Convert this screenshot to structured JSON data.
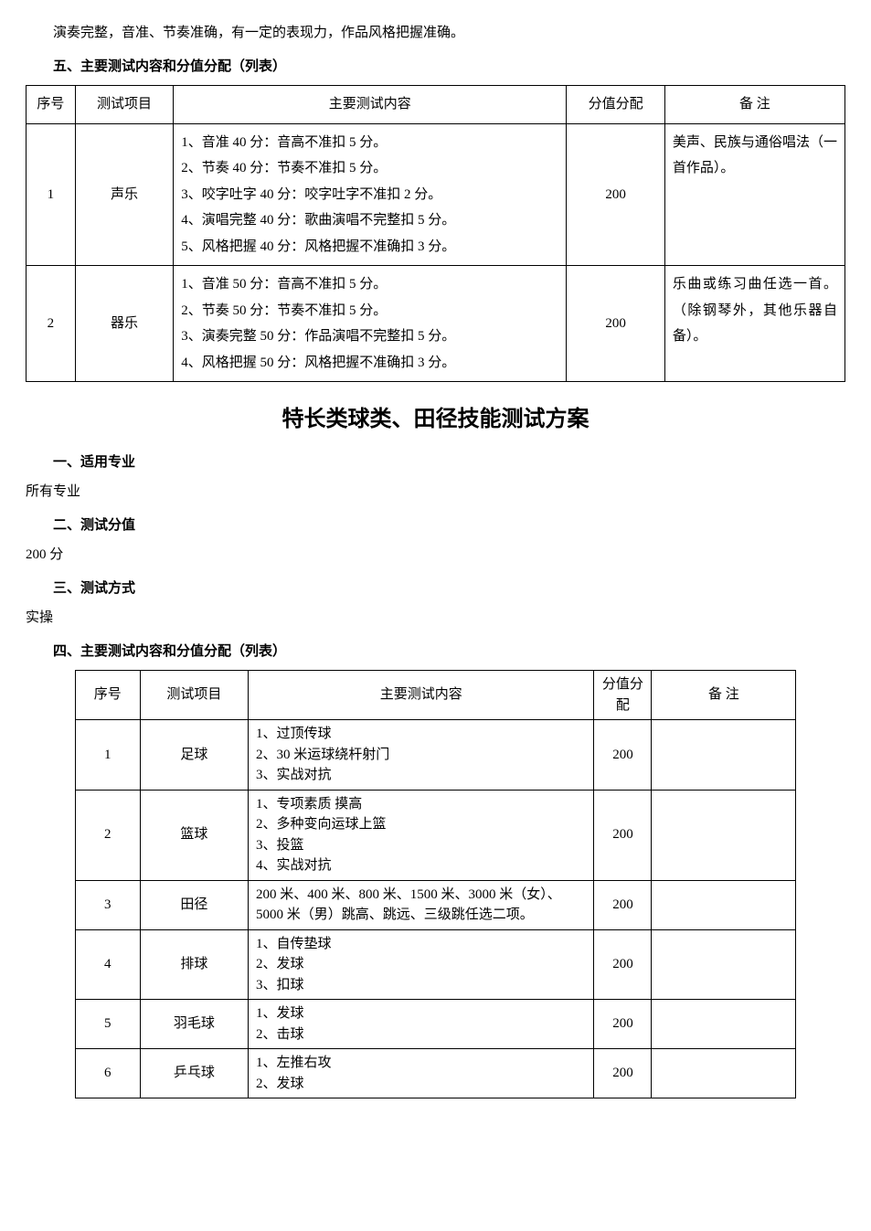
{
  "intro_line": "演奏完整，音准、节奏准确，有一定的表现力，作品风格把握准确。",
  "section5_heading": "五、主要测试内容和分值分配（列表）",
  "table1": {
    "headers": {
      "seq": "序号",
      "item": "测试项目",
      "content": "主要测试内容",
      "score": "分值分配",
      "note": "备  注"
    },
    "rows": [
      {
        "seq": "1",
        "item": "声乐",
        "content_lines": [
          "1、音准 40 分：音高不准扣 5 分。",
          "2、节奏 40 分：节奏不准扣 5 分。",
          "3、咬字吐字 40 分：咬字吐字不准扣 2 分。",
          "4、演唱完整 40 分：歌曲演唱不完整扣 5 分。",
          "5、风格把握 40 分：风格把握不准确扣 3 分。"
        ],
        "score": "200",
        "note": "美声、民族与通俗唱法（一首作品）。"
      },
      {
        "seq": "2",
        "item": "器乐",
        "content_lines": [
          "1、音准 50 分：音高不准扣 5 分。",
          "2、节奏 50 分：节奏不准扣 5 分。",
          "3、演奏完整 50 分：作品演唱不完整扣 5 分。",
          "4、风格把握 50 分：风格把握不准确扣 3 分。"
        ],
        "score": "200",
        "note": "乐曲或练习曲任选一首。（除钢琴外，其他乐器自备）。"
      }
    ]
  },
  "doc2_title": "特长类球类、田径技能测试方案",
  "sec1_heading": "一、适用专业",
  "sec1_text": "所有专业",
  "sec2_heading": "二、测试分值",
  "sec2_text": "200 分",
  "sec3_heading": "三、测试方式",
  "sec3_text": "实操",
  "sec4_heading": "四、主要测试内容和分值分配（列表）",
  "table2": {
    "headers": {
      "seq": "序号",
      "item": "测试项目",
      "content": "主要测试内容",
      "score": "分值分配",
      "note": "备  注"
    },
    "rows": [
      {
        "seq": "1",
        "item": "足球",
        "content_lines": [
          "1、过顶传球",
          "2、30 米运球绕杆射门",
          "3、实战对抗"
        ],
        "score": "200",
        "note": ""
      },
      {
        "seq": "2",
        "item": "篮球",
        "content_lines": [
          "1、专项素质 摸高",
          "2、多种变向运球上篮",
          "3、投篮",
          "4、实战对抗"
        ],
        "score": "200",
        "note": ""
      },
      {
        "seq": "3",
        "item": "田径",
        "content_lines": [
          "200 米、400 米、800 米、1500 米、3000 米（女）、5000 米（男）跳高、跳远、三级跳任选二项。"
        ],
        "score": "200",
        "note": ""
      },
      {
        "seq": "4",
        "item": "排球",
        "content_lines": [
          "1、自传垫球",
          "2、发球",
          "3、扣球"
        ],
        "score": "200",
        "note": ""
      },
      {
        "seq": "5",
        "item": "羽毛球",
        "content_lines": [
          "1、发球",
          "2、击球"
        ],
        "score": "200",
        "note": ""
      },
      {
        "seq": "6",
        "item": "乒乓球",
        "content_lines": [
          "1、左推右攻",
          "2、发球"
        ],
        "score": "200",
        "note": ""
      }
    ]
  }
}
